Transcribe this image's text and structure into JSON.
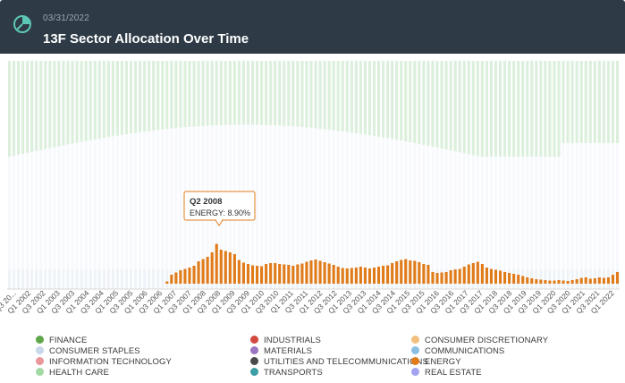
{
  "header": {
    "date": "03/31/2022",
    "title": "13F Sector Allocation Over Time",
    "icon": "pie-chart-icon"
  },
  "colors": {
    "header_bg": "#2e3b46",
    "finance": "#5fa84a",
    "consumer_staples": "#c8d7ea",
    "information_technology": "#e8979a",
    "health_care": "#a3d9a3",
    "industrials": "#d24a3f",
    "materials": "#9a76c3",
    "utilities": "#4a4a4a",
    "transports": "#3c9ea5",
    "consumer_discretionary": "#f2c07f",
    "communications": "#89bfe3",
    "energy": "#e07b1a",
    "real_estate": "#a3a3ef"
  },
  "chart_data": {
    "type": "bar",
    "stacked": true,
    "units": "percent of portfolio",
    "ylim": [
      0,
      100
    ],
    "x_tick_labels": [
      "Q3 20...",
      "Q1 2002",
      "Q3 2002",
      "Q1 2003",
      "Q3 2003",
      "Q1 2004",
      "Q3 2004",
      "Q1 2005",
      "Q3 2005",
      "Q1 2006",
      "Q3 2006",
      "Q1 2007",
      "Q3 2007",
      "Q1 2008",
      "Q3 2008",
      "Q1 2009",
      "Q3 2009",
      "Q1 2010",
      "Q3 2010",
      "Q1 2011",
      "Q3 2011",
      "Q1 2012",
      "Q3 2012",
      "Q1 2013",
      "Q3 2013",
      "Q1 2014",
      "Q3 2014",
      "Q1 2015",
      "Q3 2015",
      "Q1 2016",
      "Q3 2016",
      "Q1 2017",
      "Q3 2017",
      "Q1 2018",
      "Q3 2018",
      "Q1 2019",
      "Q3 2019",
      "Q1 2020",
      "Q3 2020",
      "Q1 2021",
      "Q3 2021",
      "Q1 2022"
    ],
    "highlighted_series": "ENERGY",
    "tooltip": {
      "title": "Q2 2008",
      "text": "ENERGY: 8.90%"
    },
    "energy_values": [
      0,
      0,
      0,
      0,
      0,
      0,
      0,
      0,
      0,
      0,
      0,
      0,
      0,
      0,
      0,
      0,
      0,
      0,
      0,
      0,
      0,
      0,
      0,
      0,
      0,
      0,
      0,
      0,
      0,
      0,
      0,
      0,
      0,
      0,
      0,
      0.5,
      2,
      2.5,
      3,
      3.3,
      3.6,
      4,
      5,
      5.5,
      6,
      7,
      8.9,
      7.6,
      7.3,
      7,
      6.6,
      5.3,
      4.7,
      4.4,
      4.1,
      4,
      3.9,
      4.4,
      4.6,
      4.6,
      4.4,
      4.3,
      4.2,
      4,
      4.3,
      4.5,
      4.9,
      5.2,
      5.4,
      5.1,
      4.8,
      4.5,
      4.2,
      3.8,
      3.5,
      3.4,
      3.5,
      3.6,
      3.8,
      3.6,
      3.4,
      3.6,
      3.8,
      4,
      4.1,
      4.6,
      5,
      5.3,
      5.5,
      5.2,
      5.1,
      4.8,
      4.4,
      4.2,
      2.6,
      2.4,
      2.5,
      2.6,
      3,
      3.2,
      3.3,
      3.8,
      4.3,
      4.6,
      4.9,
      4.4,
      3.6,
      3.3,
      3.1,
      2.9,
      2.6,
      2.4,
      2.2,
      2,
      1.7,
      1.4,
      1.2,
      1,
      0.9,
      0.8,
      0.7,
      0.7,
      0.8,
      0.7,
      0.6,
      0.8,
      1,
      1.3,
      1.4,
      1.1,
      1.2,
      1.4,
      1.3,
      1.4,
      2,
      2.6
    ],
    "series": [
      {
        "name": "FINANCE",
        "color": "#5fa84a"
      },
      {
        "name": "CONSUMER STAPLES",
        "color": "#c8d7ea"
      },
      {
        "name": "INFORMATION TECHNOLOGY",
        "color": "#e8979a"
      },
      {
        "name": "HEALTH CARE",
        "color": "#a3d9a3"
      },
      {
        "name": "INDUSTRIALS",
        "color": "#d24a3f"
      },
      {
        "name": "MATERIALS",
        "color": "#9a76c3"
      },
      {
        "name": "UTILITIES AND TELECOMMUNICATIONS",
        "color": "#4a4a4a"
      },
      {
        "name": "TRANSPORTS",
        "color": "#3c9ea5"
      },
      {
        "name": "CONSUMER DISCRETIONARY",
        "color": "#f2c07f"
      },
      {
        "name": "COMMUNICATIONS",
        "color": "#89bfe3"
      },
      {
        "name": "ENERGY",
        "color": "#e07b1a"
      },
      {
        "name": "REAL ESTATE",
        "color": "#a3a3ef"
      }
    ]
  },
  "legend": {
    "col1": [
      {
        "label": "FINANCE",
        "color": "#5fa84a"
      },
      {
        "label": "CONSUMER STAPLES",
        "color": "#c8d7ea"
      },
      {
        "label": "INFORMATION TECHNOLOGY",
        "color": "#e8979a"
      },
      {
        "label": "HEALTH CARE",
        "color": "#a3d9a3"
      }
    ],
    "col2": [
      {
        "label": "INDUSTRIALS",
        "color": "#d24a3f"
      },
      {
        "label": "MATERIALS",
        "color": "#9a76c3"
      },
      {
        "label": "UTILITIES AND TELECOMMUNICATIONS",
        "color": "#4a4a4a"
      },
      {
        "label": "TRANSPORTS",
        "color": "#3c9ea5"
      }
    ],
    "col3": [
      {
        "label": "CONSUMER DISCRETIONARY",
        "color": "#f2c07f"
      },
      {
        "label": "COMMUNICATIONS",
        "color": "#89bfe3"
      },
      {
        "label": "ENERGY",
        "color": "#e07b1a"
      },
      {
        "label": "REAL ESTATE",
        "color": "#a3a3ef"
      }
    ]
  }
}
